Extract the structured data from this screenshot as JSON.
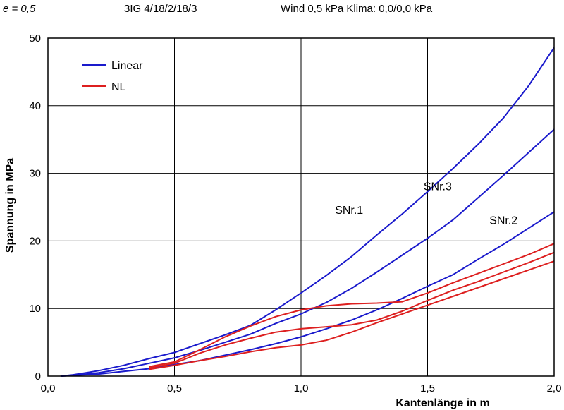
{
  "header": {
    "e_label": "e = 0,5",
    "title": "3IG  4/18/2/18/3",
    "wind": "Wind 0,5 kPa  Klima: 0,0/0,0 kPa"
  },
  "chart_data": {
    "type": "line",
    "title": "",
    "xlabel": "Kantenlänge in m",
    "ylabel": "Spannung  in MPa",
    "xlim": [
      0,
      2
    ],
    "ylim": [
      0,
      50
    ],
    "x_ticks": [
      0,
      0.5,
      1.0,
      1.5,
      2.0
    ],
    "x_tick_labels": [
      "0,0",
      "0,5",
      "1,0",
      "1,5",
      "2,0"
    ],
    "y_ticks": [
      0,
      10,
      20,
      30,
      40,
      50
    ],
    "y_tick_labels": [
      "0",
      "10",
      "20",
      "30",
      "40",
      "50"
    ],
    "grid": true,
    "legend": {
      "placement": "top-left",
      "entries": [
        {
          "label": "Linear",
          "color": "#1a1acc"
        },
        {
          "label": "NL",
          "color": "#dd1f1f"
        }
      ]
    },
    "annotations": [
      {
        "text": "SNr.1",
        "x": 1.19,
        "y": 24
      },
      {
        "text": "SNr.3",
        "x": 1.54,
        "y": 27.5
      },
      {
        "text": "SNr.2",
        "x": 1.8,
        "y": 22.5
      }
    ],
    "series": [
      {
        "group": "Linear",
        "color": "#1a1acc",
        "x": [
          0.05,
          0.1,
          0.2,
          0.3,
          0.4,
          0.5,
          0.6,
          0.7,
          0.8,
          0.9,
          1.0,
          1.1,
          1.2,
          1.3,
          1.4,
          1.5,
          1.6,
          1.7,
          1.8,
          1.9,
          2.0
        ],
        "y": [
          0,
          0.2,
          0.8,
          1.6,
          2.6,
          3.5,
          4.8,
          6.1,
          7.5,
          9.8,
          12.3,
          14.9,
          17.7,
          20.9,
          24.0,
          27.3,
          30.7,
          34.3,
          38.2,
          43.0,
          48.6
        ]
      },
      {
        "group": "Linear",
        "color": "#1a1acc",
        "x": [
          0.05,
          0.1,
          0.2,
          0.3,
          0.4,
          0.5,
          0.6,
          0.7,
          0.8,
          0.9,
          1.0,
          1.1,
          1.2,
          1.3,
          1.4,
          1.5,
          1.6,
          1.7,
          1.8,
          1.9,
          2.0
        ],
        "y": [
          0,
          0.1,
          0.5,
          1.1,
          1.9,
          2.7,
          3.8,
          5.0,
          6.2,
          7.8,
          9.2,
          10.9,
          13.0,
          15.4,
          17.9,
          20.4,
          23.1,
          26.4,
          29.7,
          33.1,
          36.5
        ]
      },
      {
        "group": "Linear",
        "color": "#1a1acc",
        "x": [
          0.05,
          0.1,
          0.2,
          0.3,
          0.4,
          0.5,
          0.6,
          0.7,
          0.8,
          0.9,
          1.0,
          1.1,
          1.2,
          1.3,
          1.4,
          1.5,
          1.6,
          1.7,
          1.8,
          1.9,
          2.0
        ],
        "y": [
          0,
          0.1,
          0.3,
          0.7,
          1.1,
          1.7,
          2.3,
          3.1,
          3.9,
          4.8,
          5.8,
          7.0,
          8.3,
          9.8,
          11.5,
          13.3,
          15.0,
          17.3,
          19.5,
          21.9,
          24.3
        ]
      },
      {
        "group": "NL",
        "color": "#dd1f1f",
        "x": [
          0.4,
          0.5,
          0.6,
          0.7,
          0.8,
          0.9,
          1.0,
          1.1,
          1.2,
          1.3,
          1.4,
          1.5,
          1.6,
          1.7,
          1.8,
          1.9,
          2.0
        ],
        "y": [
          1.4,
          2.1,
          3.9,
          5.8,
          7.4,
          8.8,
          9.8,
          10.4,
          10.7,
          10.8,
          11.0,
          12.3,
          13.8,
          15.2,
          16.6,
          18.0,
          19.6
        ]
      },
      {
        "group": "NL",
        "color": "#dd1f1f",
        "x": [
          0.4,
          0.5,
          0.6,
          0.7,
          0.8,
          0.9,
          1.0,
          1.1,
          1.2,
          1.3,
          1.4,
          1.5,
          1.6,
          1.7,
          1.8,
          1.9,
          2.0
        ],
        "y": [
          1.2,
          1.9,
          3.4,
          4.6,
          5.6,
          6.5,
          7.0,
          7.3,
          7.6,
          8.3,
          9.6,
          11.2,
          12.7,
          14.0,
          15.4,
          16.8,
          18.3
        ]
      },
      {
        "group": "NL",
        "color": "#dd1f1f",
        "x": [
          0.4,
          0.5,
          0.6,
          0.7,
          0.8,
          0.9,
          1.0,
          1.1,
          1.2,
          1.3,
          1.4,
          1.5,
          1.6,
          1.7,
          1.8,
          1.9,
          2.0
        ],
        "y": [
          1.0,
          1.6,
          2.3,
          2.9,
          3.6,
          4.2,
          4.6,
          5.3,
          6.5,
          7.9,
          9.2,
          10.5,
          11.8,
          13.1,
          14.4,
          15.7,
          17.0
        ]
      }
    ]
  }
}
